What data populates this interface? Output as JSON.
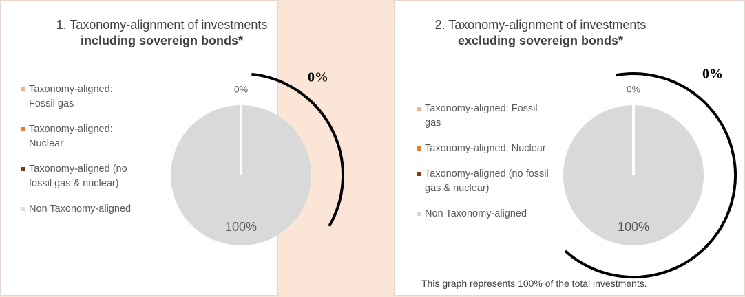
{
  "chart_data": [
    {
      "type": "pie",
      "title": "1. Taxonomy-alignment of investments",
      "subtitle": "including sovereign bonds*",
      "categories": [
        "Taxonomy-aligned: Fossil gas",
        "Taxonomy-aligned: Nuclear",
        "Taxonomy-aligned (no fossil gas & nuclear)",
        "Non Taxonomy-aligned"
      ],
      "values": [
        0,
        0,
        0,
        100
      ],
      "value_labels": [
        "0%",
        null,
        null,
        "100%"
      ],
      "colors": [
        "#f4b183",
        "#ed7d31",
        "#843c0c",
        "#d9d9d9"
      ],
      "annotation": "0%",
      "legend": "left"
    },
    {
      "type": "pie",
      "title": "2. Taxonomy-alignment of investments",
      "subtitle": "excluding sovereign bonds*",
      "categories": [
        "Taxonomy-aligned: Fossil gas",
        "Taxonomy-aligned: Nuclear",
        "Taxonomy-aligned (no fossil gas & nuclear)",
        "Non Taxonomy-aligned"
      ],
      "values": [
        0,
        0,
        0,
        100
      ],
      "value_labels": [
        "0%",
        null,
        null,
        "100%"
      ],
      "colors": [
        "#f4b183",
        "#ed7d31",
        "#843c0c",
        "#d9d9d9"
      ],
      "annotation": "0%",
      "note": "This graph represents 100% of the total investments.",
      "legend": "left"
    }
  ]
}
